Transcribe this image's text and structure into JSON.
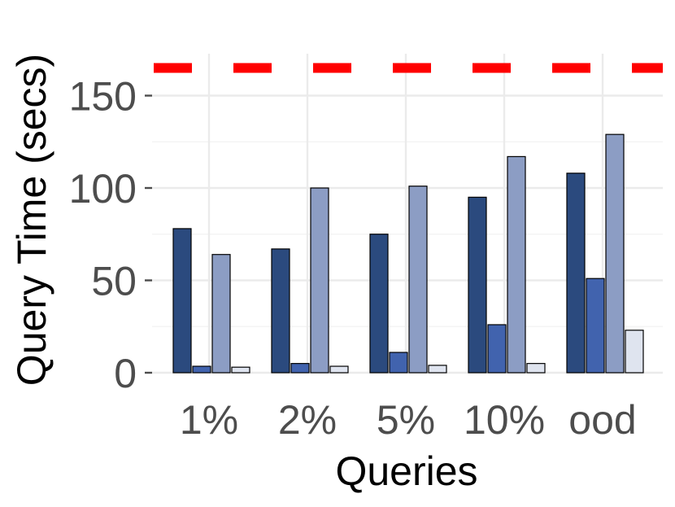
{
  "chart_data": {
    "type": "bar",
    "categories": [
      "1%",
      "2%",
      "5%",
      "10%",
      "ood"
    ],
    "series": [
      {
        "values": [
          78,
          67,
          75,
          95,
          108
        ],
        "color": "#2b4a7e"
      },
      {
        "values": [
          3.5,
          5,
          11,
          26,
          51
        ],
        "color": "#4163ae"
      },
      {
        "values": [
          64,
          100,
          101,
          117,
          129
        ],
        "color": "#8c9dc4"
      },
      {
        "values": [
          3,
          3.5,
          4,
          5,
          23
        ],
        "color": "#dfe4ef"
      }
    ],
    "reference_line": {
      "value": 165,
      "color": "#ff0000",
      "style": "dashed"
    },
    "xlabel": "Queries",
    "ylabel": "Query Time (secs)",
    "ylim": [
      0,
      172
    ],
    "yticks": [
      0,
      50,
      100,
      150
    ],
    "yticks_labels": [
      "0",
      "50",
      "100",
      "150"
    ],
    "grid": true
  }
}
